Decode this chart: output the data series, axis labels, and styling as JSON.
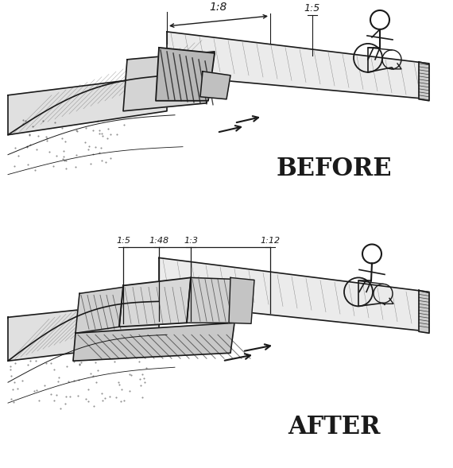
{
  "background_color": "#ffffff",
  "fig_width": 5.7,
  "fig_height": 5.89,
  "dpi": 100,
  "sketch_color": "#1a1a1a",
  "before_label": "BEFORE",
  "after_label": "AFTER",
  "before_1_8": "1:8",
  "before_1_5": "1:5",
  "after_1_5": "1:5",
  "after_1_48": "1:48",
  "after_1_3": "1:3",
  "after_1_12": "1:12"
}
